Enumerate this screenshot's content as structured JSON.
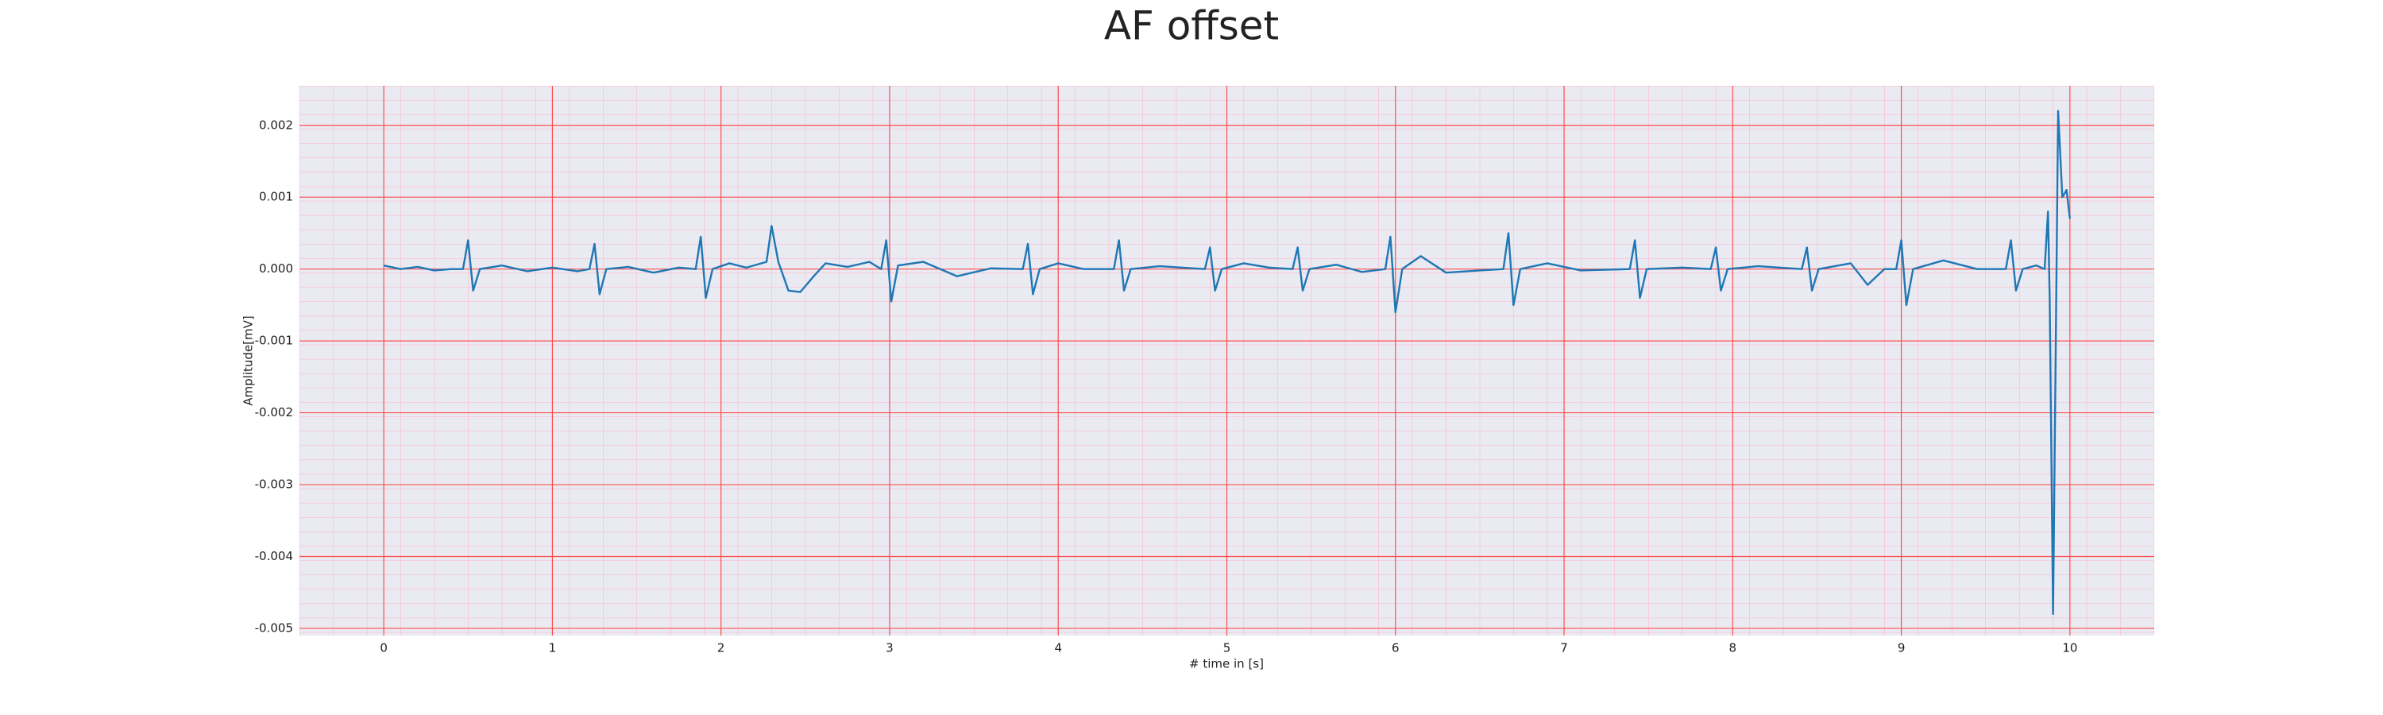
{
  "chart_data": {
    "type": "line",
    "title": "AF offset",
    "xlabel": "# time in [s]",
    "ylabel": "Amplitude[mV]",
    "x": [
      0,
      0.1,
      0.2,
      0.3,
      0.4,
      0.47,
      0.5,
      0.53,
      0.57,
      0.7,
      0.85,
      1.0,
      1.15,
      1.22,
      1.25,
      1.28,
      1.32,
      1.45,
      1.6,
      1.75,
      1.85,
      1.88,
      1.91,
      1.95,
      2.05,
      2.15,
      2.27,
      2.3,
      2.34,
      2.4,
      2.47,
      2.55,
      2.62,
      2.75,
      2.88,
      2.95,
      2.98,
      3.01,
      3.05,
      3.2,
      3.4,
      3.6,
      3.79,
      3.82,
      3.85,
      3.89,
      4.0,
      4.15,
      4.33,
      4.36,
      4.39,
      4.43,
      4.6,
      4.87,
      4.9,
      4.93,
      4.97,
      5.1,
      5.25,
      5.39,
      5.42,
      5.45,
      5.49,
      5.65,
      5.8,
      5.94,
      5.97,
      6.0,
      6.04,
      6.15,
      6.3,
      6.5,
      6.64,
      6.67,
      6.7,
      6.74,
      6.9,
      7.1,
      7.39,
      7.42,
      7.45,
      7.49,
      7.7,
      7.87,
      7.9,
      7.93,
      7.97,
      8.15,
      8.41,
      8.44,
      8.47,
      8.51,
      8.7,
      8.8,
      8.9,
      8.97,
      9.0,
      9.03,
      9.07,
      9.25,
      9.45,
      9.62,
      9.65,
      9.68,
      9.72,
      9.8,
      9.85,
      9.87,
      9.88,
      9.9,
      9.93,
      9.955,
      9.98,
      10.0
    ],
    "series": [
      {
        "name": "AF offset",
        "color": "#1f77b4",
        "values": [
          5e-05,
          0,
          3e-05,
          -2e-05,
          0,
          0,
          0.0004,
          -0.0003,
          0,
          5e-05,
          -3e-05,
          2e-05,
          -3e-05,
          0,
          0.00035,
          -0.00035,
          0,
          3e-05,
          -5e-05,
          2e-05,
          0,
          0.00045,
          -0.0004,
          0,
          8e-05,
          2e-05,
          0.0001,
          0.0006,
          0.0001,
          -0.0003,
          -0.00032,
          -0.0001,
          8e-05,
          3e-05,
          0.0001,
          0,
          0.0004,
          -0.00045,
          5e-05,
          0.0001,
          -0.0001,
          1e-05,
          0,
          0.00035,
          -0.00035,
          0,
          8e-05,
          0,
          0,
          0.0004,
          -0.0003,
          0,
          4e-05,
          0,
          0.0003,
          -0.0003,
          0,
          8e-05,
          2e-05,
          0,
          0.0003,
          -0.0003,
          0,
          6e-05,
          -4e-05,
          0,
          0.00045,
          -0.0006,
          0,
          0.00018,
          -5e-05,
          -2e-05,
          0,
          0.0005,
          -0.0005,
          0,
          8e-05,
          -2e-05,
          0,
          0.0004,
          -0.0004,
          0,
          2e-05,
          0,
          0.0003,
          -0.0003,
          0,
          4e-05,
          0,
          0.0003,
          -0.0003,
          0,
          8e-05,
          -0.00022,
          0,
          0,
          0.0004,
          -0.0005,
          0,
          0.00012,
          0,
          0,
          0.0004,
          -0.0003,
          0,
          5e-05,
          0,
          0.0008,
          -0.0004,
          -0.0048,
          0.0022,
          0.001,
          0.0011,
          0.0007
        ]
      }
    ],
    "xlim": [
      -0.5,
      10.5
    ],
    "xticks": [
      0,
      1,
      2,
      3,
      4,
      5,
      6,
      7,
      8,
      9,
      10
    ],
    "ylim": [
      -0.0051,
      0.00255
    ],
    "yticks": [
      -0.005,
      -0.004,
      -0.003,
      -0.002,
      -0.001,
      {
        "value": 0,
        "label": "0.000"
      },
      0.001,
      0.002
    ],
    "grid": true,
    "grid_color": "#ff4d4d"
  }
}
